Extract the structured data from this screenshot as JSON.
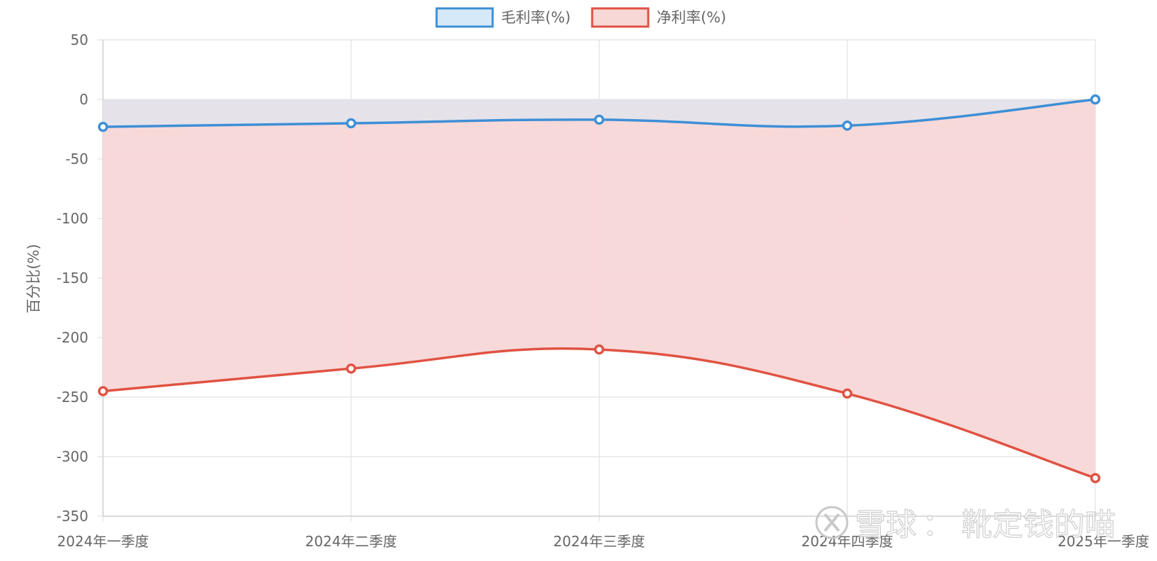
{
  "chart_data": {
    "type": "area",
    "categories": [
      "2024年一季度",
      "2024年二季度",
      "2024年三季度",
      "2024年四季度",
      "2025年一季度"
    ],
    "series": [
      {
        "name": "毛利率(%)",
        "values": [
          -23,
          -20,
          -17,
          -22,
          0
        ],
        "color": "#3d8fd6",
        "fill": "#d6e9f8"
      },
      {
        "name": "净利率(%)",
        "values": [
          -245,
          -226,
          -210,
          -247,
          -318
        ],
        "color": "#e05242",
        "fill": "#f8d7d7"
      }
    ],
    "ylabel": "百分比(%)",
    "ylim": [
      -350,
      50
    ],
    "yticks": [
      50,
      0,
      -50,
      -100,
      -150,
      -200,
      -250,
      -300,
      -350
    ],
    "grid": true,
    "legend_position": "top-center"
  },
  "watermark": {
    "brand": "雪球",
    "separator": "：",
    "author": "靴定钱的喵"
  }
}
